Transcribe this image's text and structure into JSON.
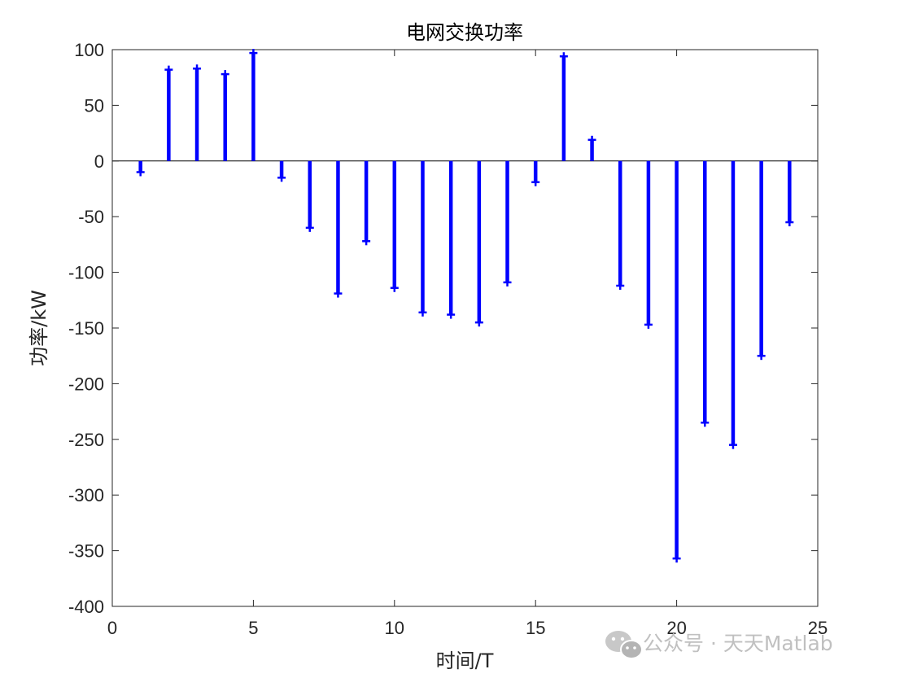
{
  "chart_data": {
    "type": "stem",
    "title": "电网交换功率",
    "xlabel": "时间/T",
    "ylabel": "功率/kW",
    "x": [
      1,
      2,
      3,
      4,
      5,
      6,
      7,
      8,
      9,
      10,
      11,
      12,
      13,
      14,
      15,
      16,
      17,
      18,
      19,
      20,
      21,
      22,
      23,
      24
    ],
    "values": [
      -10,
      82,
      83,
      78,
      97,
      -15,
      -60,
      -119,
      -72,
      -114,
      -136,
      -138,
      -145,
      -109,
      -19,
      94,
      19,
      -112,
      -147,
      -357,
      -235,
      -255,
      -175,
      -55
    ],
    "xlim": [
      0,
      25
    ],
    "ylim": [
      -400,
      100
    ],
    "x_ticks": [
      "0",
      "5",
      "10",
      "15",
      "20",
      "25"
    ],
    "y_ticks": [
      "100",
      "50",
      "0",
      "-50",
      "-100",
      "-150",
      "-200",
      "-250",
      "-300",
      "-350",
      "-400"
    ],
    "stem_color": "#0000ff",
    "grid": false,
    "legend": "none"
  },
  "watermark": {
    "text": "公众号 · 天天Matlab",
    "icon": "wechat-icon"
  }
}
